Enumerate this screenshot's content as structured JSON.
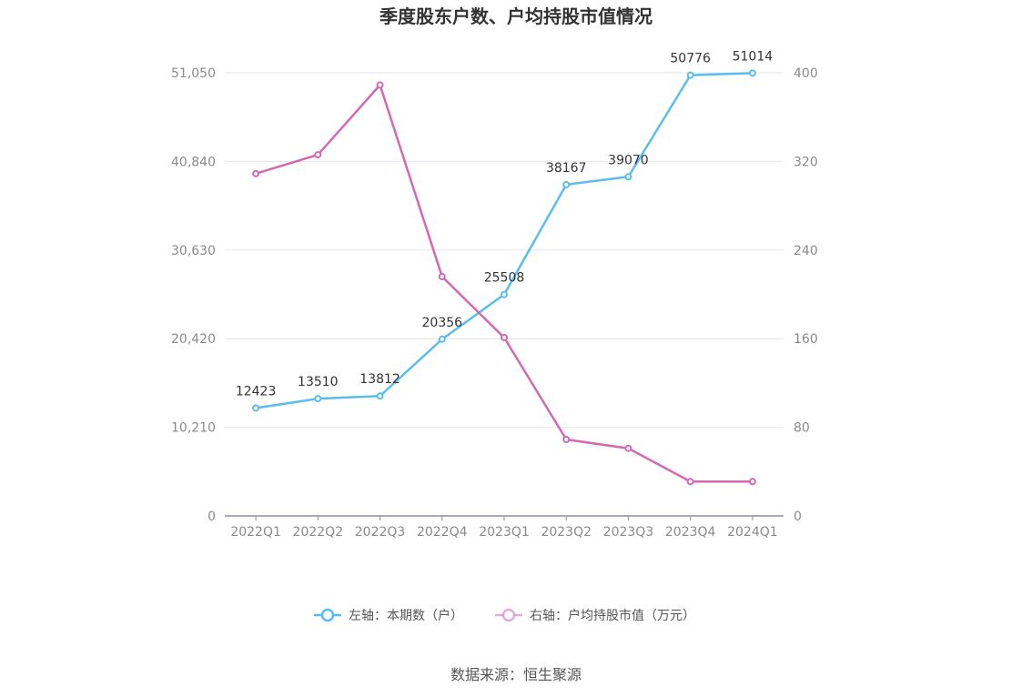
{
  "chart_data": {
    "type": "line",
    "title": "季度股东户数、户均持股市值情况",
    "categories": [
      "2022Q1",
      "2022Q2",
      "2022Q3",
      "2022Q4",
      "2023Q1",
      "2023Q2",
      "2023Q3",
      "2023Q4",
      "2024Q1"
    ],
    "left_axis": {
      "ticks": [
        "0",
        "10,210",
        "20,420",
        "30,630",
        "40,840",
        "51,050"
      ],
      "min": 0,
      "max": 51050
    },
    "right_axis": {
      "ticks": [
        "0",
        "80",
        "160",
        "240",
        "320",
        "400"
      ],
      "min": 0,
      "max": 400
    },
    "grid": true,
    "legend_position": "bottom",
    "series": [
      {
        "name": "左轴：本期数（户）",
        "axis": "left",
        "color": "#5bbdee",
        "values": [
          12423,
          13510,
          13812,
          20356,
          25508,
          38167,
          39070,
          50776,
          51014
        ],
        "labels": [
          "12423",
          "13510",
          "13812",
          "20356",
          "25508",
          "38167",
          "39070",
          "50776",
          "51014"
        ]
      },
      {
        "name": "右轴：户均持股市值（万元）",
        "axis": "right",
        "color": "#d468b3",
        "values": [
          309,
          326,
          389,
          216,
          161,
          69,
          61,
          31,
          31
        ]
      }
    ],
    "source": "数据来源：恒生聚源"
  }
}
